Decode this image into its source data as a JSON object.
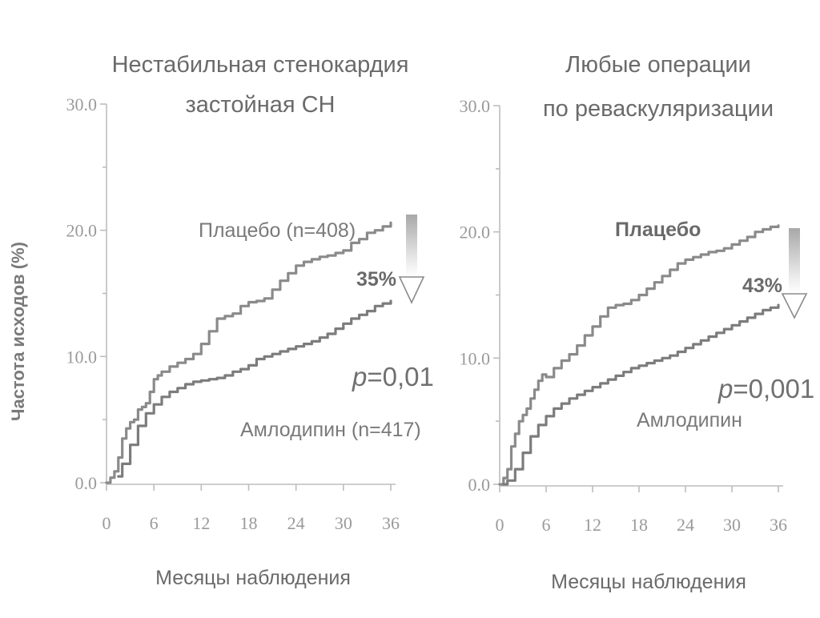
{
  "y_axis_label": "Частота исходов (%)",
  "colors": {
    "placebo": "#8a8a8a",
    "amlodipine": "#7c7c7c",
    "axis": "#bdbdbd",
    "text": "#6a6a6a"
  },
  "chart_data": [
    {
      "type": "line",
      "title_lines": [
        "Нестабильная стенокардия",
        "застойная СН"
      ],
      "xlabel": "Месяцы наблюдения",
      "ylabel": "Частота исходов (%)",
      "xlim": [
        0,
        36
      ],
      "ylim": [
        0,
        30
      ],
      "x_ticks": [
        0,
        6,
        12,
        18,
        24,
        30,
        36
      ],
      "y_ticks": [
        0,
        10,
        20,
        30
      ],
      "y_tick_labels": [
        "0.0",
        "10.0",
        "20.0",
        "30.0"
      ],
      "grid": false,
      "reduction_label": "35%",
      "p_value": {
        "symbol": "p",
        "text": "=0,01"
      },
      "series": [
        {
          "name": "Плацебо (n=408)",
          "x": [
            0,
            0.5,
            1,
            1.5,
            2,
            2.5,
            3,
            3.5,
            4,
            4.5,
            5,
            5.5,
            6,
            6.5,
            7,
            8,
            9,
            10,
            11,
            12,
            13,
            14,
            15,
            16,
            17,
            18,
            19,
            20,
            21,
            22,
            23,
            24,
            25,
            26,
            27,
            28,
            29,
            30,
            31,
            32,
            33,
            34,
            35,
            36
          ],
          "y": [
            0,
            0.4,
            0.9,
            2,
            3.5,
            4.3,
            4.8,
            5,
            5.8,
            6,
            6.3,
            7.2,
            8.2,
            8.5,
            8.8,
            9.2,
            9.5,
            9.8,
            10.2,
            11,
            12,
            13,
            13.2,
            13.4,
            14,
            14.3,
            14.4,
            14.6,
            15.3,
            16,
            16.6,
            17.2,
            17.5,
            17.7,
            17.9,
            18,
            18.2,
            18.4,
            19,
            19.3,
            19.8,
            20,
            20.3,
            20.6
          ]
        },
        {
          "name": "Амлодипин (n=417)",
          "x": [
            1.5,
            2,
            3,
            4,
            5,
            6,
            7,
            8,
            9,
            10,
            11,
            12,
            13,
            14,
            15,
            16,
            17,
            18,
            19,
            20,
            21,
            22,
            23,
            24,
            25,
            26,
            27,
            28,
            29,
            30,
            31,
            32,
            33,
            34,
            35,
            36
          ],
          "y": [
            0.5,
            1.5,
            3,
            4.5,
            5.5,
            6.2,
            6.8,
            7.2,
            7.5,
            7.8,
            8,
            8.1,
            8.2,
            8.3,
            8.5,
            8.8,
            9,
            9.3,
            9.8,
            10,
            10.2,
            10.4,
            10.6,
            10.8,
            11,
            11.2,
            11.5,
            11.8,
            12.2,
            12.6,
            13,
            13.3,
            13.6,
            14,
            14.2,
            14.4
          ]
        }
      ]
    },
    {
      "type": "line",
      "title_lines": [
        "Любые операции",
        "по реваскуляризации"
      ],
      "xlabel": "Месяцы наблюдения",
      "xlim": [
        0,
        36
      ],
      "ylim": [
        0,
        30
      ],
      "x_ticks": [
        0,
        6,
        12,
        18,
        24,
        30,
        36
      ],
      "y_ticks": [
        0,
        10,
        20,
        30
      ],
      "y_tick_labels": [
        "0.0",
        "10.0",
        "20.0",
        "30.0"
      ],
      "grid": false,
      "reduction_label": "43%",
      "p_value": {
        "symbol": "p",
        "text": "=0,001"
      },
      "series": [
        {
          "name": "Плацебо",
          "x": [
            0,
            0.5,
            1,
            1.5,
            2,
            2.5,
            3,
            3.5,
            4,
            4.5,
            5,
            5.5,
            6,
            7,
            8,
            9,
            10,
            11,
            12,
            13,
            14,
            15,
            16,
            17,
            18,
            19,
            20,
            21,
            22,
            23,
            24,
            25,
            26,
            27,
            28,
            29,
            30,
            31,
            32,
            33,
            34,
            35,
            36
          ],
          "y": [
            0,
            0.5,
            1.2,
            3,
            4,
            5,
            5.5,
            6,
            6.8,
            7.5,
            8.2,
            8.7,
            8.5,
            9.2,
            9.8,
            10.3,
            11,
            11.8,
            12.5,
            13.3,
            14,
            14.2,
            14.3,
            14.6,
            15,
            15.5,
            16,
            16.5,
            17,
            17.5,
            17.8,
            18,
            18.2,
            18.4,
            18.5,
            18.7,
            19,
            19.3,
            19.6,
            20,
            20.2,
            20.4,
            20.5
          ]
        },
        {
          "name": "Амлодипин",
          "x": [
            0.5,
            1,
            2,
            3,
            4,
            5,
            6,
            7,
            8,
            9,
            10,
            11,
            12,
            13,
            14,
            15,
            16,
            17,
            18,
            19,
            20,
            21,
            22,
            23,
            24,
            25,
            26,
            27,
            28,
            29,
            30,
            31,
            32,
            33,
            34,
            35,
            36
          ],
          "y": [
            0,
            0.3,
            1.2,
            2.5,
            3.8,
            4.7,
            5.4,
            6,
            6.4,
            6.8,
            7.1,
            7.4,
            7.7,
            8,
            8.3,
            8.6,
            8.9,
            9.2,
            9.4,
            9.6,
            9.8,
            10,
            10.2,
            10.5,
            10.8,
            11.1,
            11.4,
            11.7,
            12,
            12.3,
            12.6,
            12.9,
            13.2,
            13.5,
            13.8,
            14,
            14.2
          ]
        }
      ]
    }
  ]
}
